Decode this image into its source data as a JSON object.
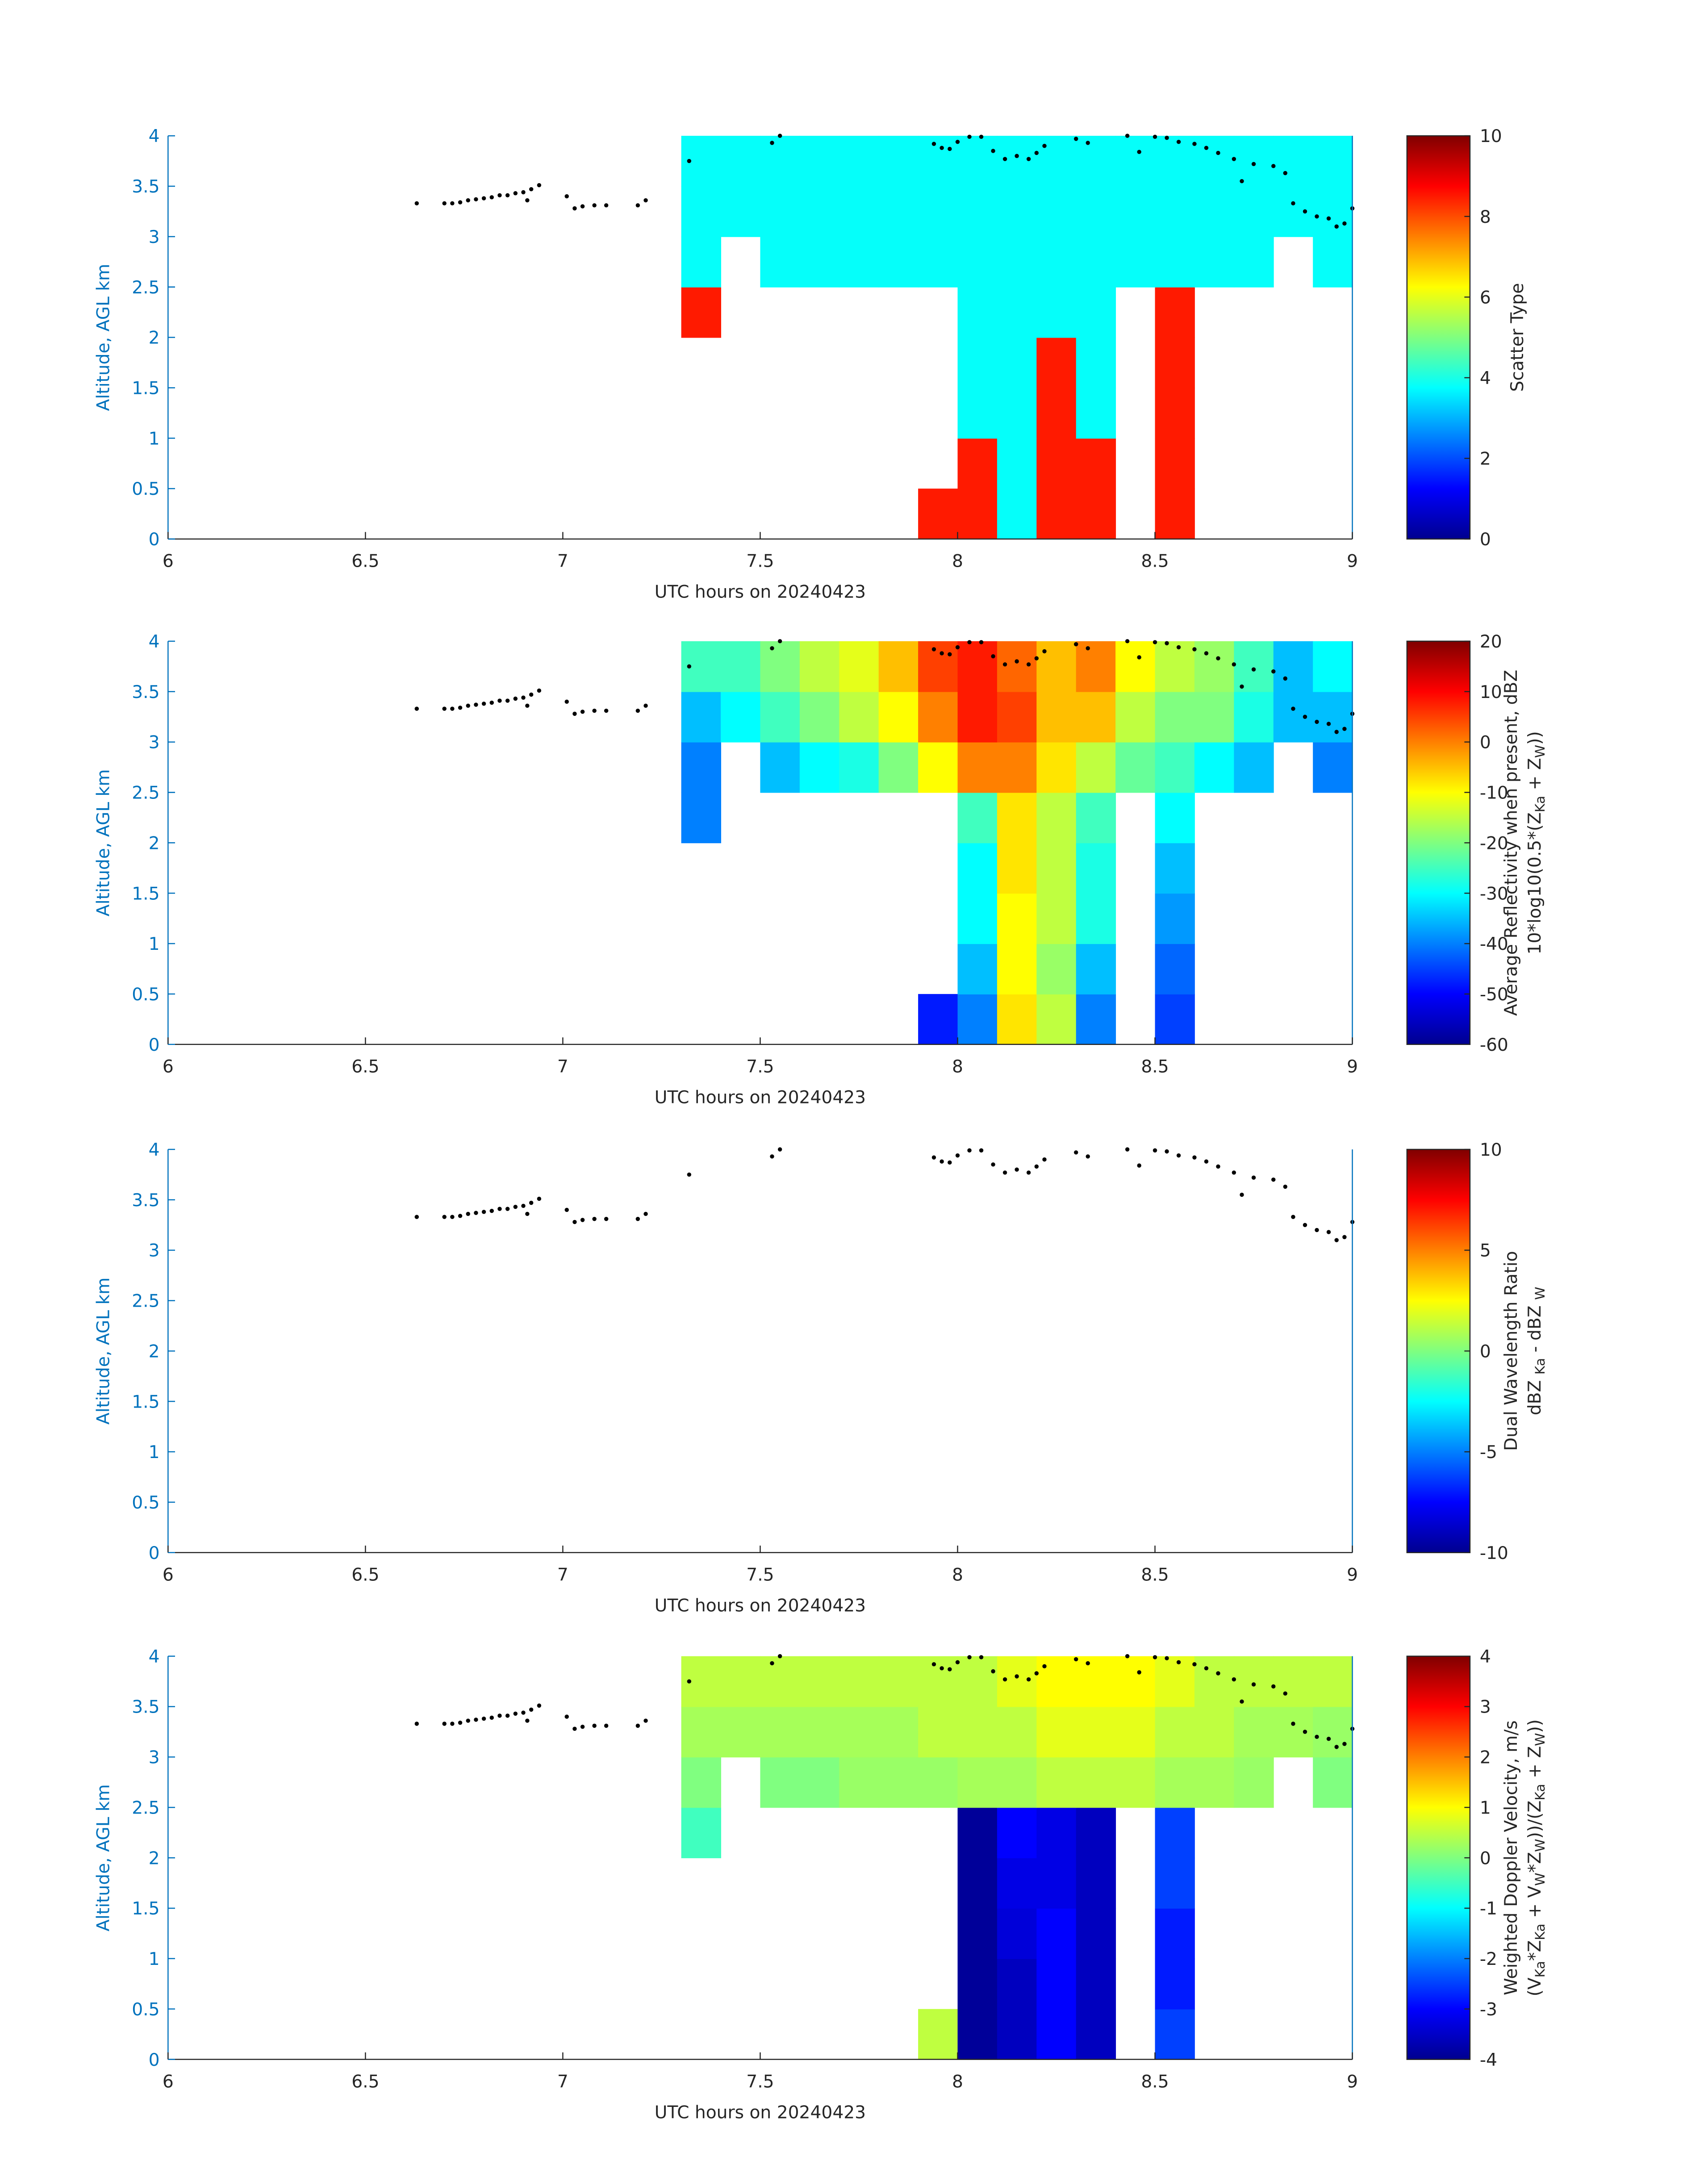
{
  "chart_data": [
    {
      "type": "heatmap",
      "ylabel": "Altitude, AGL km",
      "xlabel": "UTC hours on 20240423",
      "xlim": [
        6,
        9
      ],
      "xticks": [
        6,
        6.5,
        7,
        7.5,
        8,
        8.5,
        9
      ],
      "ylim": [
        0,
        4
      ],
      "yticks": [
        0,
        0.5,
        1,
        1.5,
        2,
        2.5,
        3,
        3.5,
        4
      ],
      "colorbar": {
        "label": [
          [
            "Scatter Type"
          ]
        ],
        "lim": [
          0,
          10
        ],
        "ticks": [
          0,
          2,
          4,
          6,
          8,
          10
        ]
      },
      "x_edges": [
        7.3,
        7.4,
        7.5,
        7.6,
        7.7,
        7.8,
        7.9,
        8.0,
        8.1,
        8.2,
        8.3,
        8.4,
        8.5,
        8.6,
        8.7,
        8.8,
        8.9,
        9.0
      ],
      "y_edges": [
        0,
        0.5,
        1,
        1.5,
        2,
        2.5,
        3,
        3.5,
        4
      ],
      "z": [
        [
          null,
          null,
          null,
          null,
          null,
          null,
          8.5,
          8.5,
          3.8,
          8.5,
          8.5,
          null,
          8.5,
          null,
          null,
          null,
          null
        ],
        [
          null,
          null,
          null,
          null,
          null,
          null,
          null,
          8.5,
          3.8,
          8.5,
          8.5,
          null,
          8.5,
          null,
          null,
          null,
          null
        ],
        [
          null,
          null,
          null,
          null,
          null,
          null,
          null,
          3.8,
          3.8,
          8.5,
          3.8,
          null,
          8.5,
          null,
          null,
          null,
          null
        ],
        [
          null,
          null,
          null,
          null,
          null,
          null,
          null,
          3.8,
          3.8,
          8.5,
          3.8,
          null,
          8.5,
          null,
          null,
          null,
          null
        ],
        [
          8.5,
          null,
          null,
          null,
          null,
          null,
          null,
          3.8,
          3.8,
          3.8,
          3.8,
          null,
          8.5,
          null,
          null,
          null,
          null
        ],
        [
          3.8,
          null,
          3.8,
          3.8,
          3.8,
          3.8,
          3.8,
          3.8,
          3.8,
          3.8,
          3.8,
          3.8,
          3.8,
          3.8,
          3.8,
          null,
          3.8
        ],
        [
          3.8,
          3.8,
          3.8,
          3.8,
          3.8,
          3.8,
          3.8,
          3.8,
          3.8,
          3.8,
          3.8,
          3.8,
          3.8,
          3.8,
          3.8,
          3.8,
          3.8
        ],
        [
          3.8,
          3.8,
          3.8,
          3.8,
          3.8,
          3.8,
          3.8,
          3.8,
          3.8,
          3.8,
          3.8,
          3.8,
          3.8,
          3.8,
          3.8,
          3.8,
          3.8
        ]
      ],
      "points": {
        "x": [
          6.63,
          6.7,
          6.72,
          6.74,
          6.76,
          6.78,
          6.8,
          6.82,
          6.84,
          6.86,
          6.88,
          6.9,
          6.91,
          6.92,
          6.94,
          7.01,
          7.03,
          7.05,
          7.08,
          7.11,
          7.19,
          7.21,
          7.32,
          7.53,
          7.55,
          7.94,
          7.96,
          7.98,
          8.0,
          8.03,
          8.06,
          8.09,
          8.12,
          8.15,
          8.18,
          8.2,
          8.22,
          8.3,
          8.33,
          8.43,
          8.46,
          8.5,
          8.53,
          8.56,
          8.6,
          8.63,
          8.66,
          8.7,
          8.72,
          8.75,
          8.8,
          8.83,
          8.85,
          8.88,
          8.91,
          8.94,
          8.96,
          8.98,
          9.0
        ],
        "y": [
          3.33,
          3.33,
          3.33,
          3.34,
          3.36,
          3.37,
          3.38,
          3.39,
          3.41,
          3.41,
          3.43,
          3.44,
          3.36,
          3.47,
          3.51,
          3.4,
          3.28,
          3.3,
          3.31,
          3.31,
          3.31,
          3.36,
          3.75,
          3.93,
          4.0,
          3.92,
          3.88,
          3.87,
          3.94,
          3.99,
          3.99,
          3.85,
          3.77,
          3.8,
          3.77,
          3.83,
          3.9,
          3.97,
          3.93,
          4.0,
          3.84,
          3.99,
          3.98,
          3.94,
          3.92,
          3.88,
          3.83,
          3.77,
          3.55,
          3.72,
          3.7,
          3.63,
          3.33,
          3.25,
          3.2,
          3.18,
          3.1,
          3.13,
          3.28
        ]
      }
    },
    {
      "type": "heatmap",
      "ylabel": "Altitude, AGL km",
      "xlabel": "UTC hours on 20240423",
      "xlim": [
        6,
        9
      ],
      "xticks": [
        6,
        6.5,
        7,
        7.5,
        8,
        8.5,
        9
      ],
      "ylim": [
        0,
        4
      ],
      "yticks": [
        0,
        0.5,
        1,
        1.5,
        2,
        2.5,
        3,
        3.5,
        4
      ],
      "colorbar": {
        "label": [
          [
            "Average Reflectivity when present, dBZ"
          ],
          [
            "10*log10(0.5*(Z",
            "Ka",
            " + Z",
            "W",
            "))"
          ]
        ],
        "lim": [
          -60,
          20
        ],
        "ticks": [
          -60,
          -50,
          -40,
          -30,
          -20,
          -10,
          0,
          10,
          20
        ]
      },
      "x_edges": [
        7.3,
        7.4,
        7.5,
        7.6,
        7.7,
        7.8,
        7.9,
        8.0,
        8.1,
        8.2,
        8.3,
        8.4,
        8.5,
        8.6,
        8.7,
        8.8,
        8.9,
        9.0
      ],
      "y_edges": [
        0,
        0.5,
        1,
        1.5,
        2,
        2.5,
        3,
        3.5,
        4
      ],
      "z": [
        [
          null,
          null,
          null,
          null,
          null,
          null,
          -48,
          -40,
          -8,
          -15,
          -40,
          null,
          -45,
          null,
          null,
          null,
          null
        ],
        [
          null,
          null,
          null,
          null,
          null,
          null,
          null,
          -35,
          -10,
          -18,
          -35,
          null,
          -42,
          null,
          null,
          null,
          null
        ],
        [
          null,
          null,
          null,
          null,
          null,
          null,
          null,
          -30,
          -10,
          -15,
          -28,
          null,
          -38,
          null,
          null,
          null,
          null
        ],
        [
          null,
          null,
          null,
          null,
          null,
          null,
          null,
          -30,
          -8,
          -15,
          -28,
          null,
          -35,
          null,
          null,
          null,
          null
        ],
        [
          -40,
          null,
          null,
          null,
          null,
          null,
          null,
          -25,
          -8,
          -15,
          -25,
          null,
          -30,
          null,
          null,
          null,
          null
        ],
        [
          -40,
          null,
          -35,
          -30,
          -28,
          -20,
          -10,
          0,
          0,
          -8,
          -15,
          -22,
          -25,
          -30,
          -35,
          null,
          -40
        ],
        [
          -35,
          -30,
          -25,
          -20,
          -15,
          -10,
          0,
          8,
          5,
          -5,
          -5,
          -15,
          -20,
          -20,
          -28,
          -35,
          -35
        ],
        [
          -25,
          -25,
          -20,
          -15,
          -12,
          -5,
          5,
          8,
          2,
          -5,
          0,
          -10,
          -15,
          -18,
          -25,
          -35,
          -30
        ]
      ]
    },
    {
      "type": "heatmap",
      "ylabel": "Altitude, AGL km",
      "xlabel": "UTC hours on 20240423",
      "xlim": [
        6,
        9
      ],
      "xticks": [
        6,
        6.5,
        7,
        7.5,
        8,
        8.5,
        9
      ],
      "ylim": [
        0,
        4
      ],
      "yticks": [
        0,
        0.5,
        1,
        1.5,
        2,
        2.5,
        3,
        3.5,
        4
      ],
      "colorbar": {
        "label": [
          [
            "Dual Wavelength Ratio"
          ],
          [
            "dBZ ",
            "Ka",
            " - dBZ ",
            "W"
          ]
        ],
        "lim": [
          -10,
          10
        ],
        "ticks": [
          -10,
          -5,
          0,
          5,
          10
        ]
      }
    },
    {
      "type": "heatmap",
      "ylabel": "Altitude, AGL km",
      "xlabel": "UTC hours on 20240423",
      "xlim": [
        6,
        9
      ],
      "xticks": [
        6,
        6.5,
        7,
        7.5,
        8,
        8.5,
        9
      ],
      "ylim": [
        0,
        4
      ],
      "yticks": [
        0,
        0.5,
        1,
        1.5,
        2,
        2.5,
        3,
        3.5,
        4
      ],
      "colorbar": {
        "label": [
          [
            "Weighted Doppler Velocity, m/s"
          ],
          [
            "(V",
            "Ka",
            "*Z",
            "Ka",
            " + V",
            "W",
            "*Z",
            "W",
            "))/(Z",
            "Ka",
            " + Z",
            "W",
            "))"
          ]
        ],
        "lim": [
          -4,
          4
        ],
        "ticks": [
          -4,
          -3,
          -2,
          -1,
          0,
          1,
          2,
          3,
          4
        ]
      },
      "x_edges": [
        7.3,
        7.4,
        7.5,
        7.6,
        7.7,
        7.8,
        7.9,
        8.0,
        8.1,
        8.2,
        8.3,
        8.4,
        8.5,
        8.6,
        8.7,
        8.8,
        8.9,
        9.0
      ],
      "y_edges": [
        0,
        0.5,
        1,
        1.5,
        2,
        2.5,
        3,
        3.5,
        4
      ],
      "z": [
        [
          null,
          null,
          null,
          null,
          null,
          null,
          0.5,
          -3.8,
          -3.5,
          -3,
          -3.5,
          null,
          -2.5,
          null,
          null,
          null,
          null
        ],
        [
          null,
          null,
          null,
          null,
          null,
          null,
          null,
          -3.8,
          -3.5,
          -3,
          -3.5,
          null,
          -2.8,
          null,
          null,
          null,
          null
        ],
        [
          null,
          null,
          null,
          null,
          null,
          null,
          null,
          -3.8,
          -3.3,
          -3,
          -3.5,
          null,
          -2.8,
          null,
          null,
          null,
          null
        ],
        [
          null,
          null,
          null,
          null,
          null,
          null,
          null,
          -3.8,
          -3.2,
          -3.2,
          -3.5,
          null,
          -2.5,
          null,
          null,
          null,
          null
        ],
        [
          -0.5,
          null,
          null,
          null,
          null,
          null,
          null,
          -3.8,
          -3,
          -3.2,
          -3.5,
          null,
          -2.5,
          null,
          null,
          null,
          null
        ],
        [
          0,
          null,
          0,
          0,
          0.2,
          0.2,
          0.2,
          0.3,
          0.3,
          0.5,
          0.5,
          0.5,
          0.3,
          0.3,
          0.2,
          null,
          0
        ],
        [
          0.3,
          0.3,
          0.3,
          0.3,
          0.3,
          0.3,
          0.5,
          0.5,
          0.5,
          0.8,
          0.8,
          0.8,
          0.5,
          0.5,
          0.3,
          0.3,
          0.2
        ],
        [
          0.5,
          0.5,
          0.5,
          0.5,
          0.5,
          0.5,
          0.5,
          0.5,
          0.8,
          1,
          1,
          1,
          0.8,
          0.5,
          0.5,
          0.5,
          0.5
        ]
      ]
    }
  ]
}
